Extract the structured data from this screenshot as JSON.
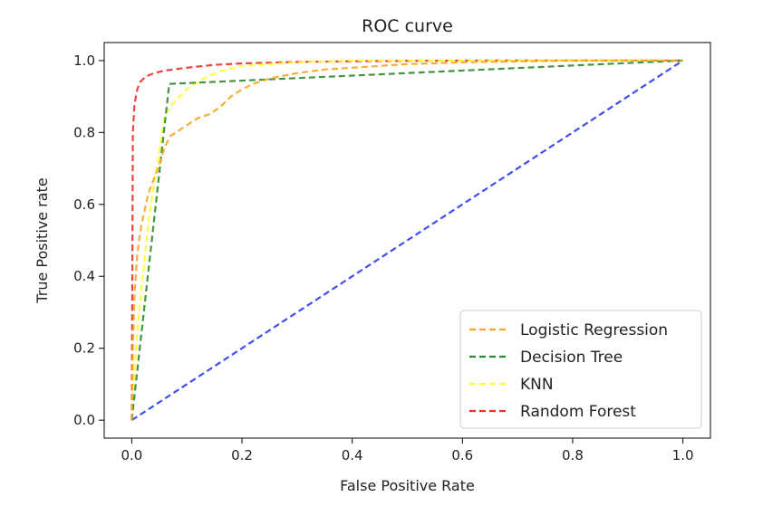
{
  "chart_data": {
    "type": "line",
    "title": "ROC curve",
    "xlabel": "False Positive Rate",
    "ylabel": "True Positive rate",
    "xlim": [
      -0.05,
      1.05
    ],
    "ylim": [
      -0.05,
      1.05
    ],
    "xticks": [
      0.0,
      0.2,
      0.4,
      0.6,
      0.8,
      1.0
    ],
    "yticks": [
      0.0,
      0.2,
      0.4,
      0.6,
      0.8,
      1.0
    ],
    "xtick_labels": [
      "0.0",
      "0.2",
      "0.4",
      "0.6",
      "0.8",
      "1.0"
    ],
    "ytick_labels": [
      "0.0",
      "0.2",
      "0.4",
      "0.6",
      "0.8",
      "1.0"
    ],
    "grid": false,
    "legend_position": "bottom-right",
    "series": [
      {
        "name": "Logistic Regression",
        "color": "#f5a623",
        "x": [
          0.0,
          0.002,
          0.005,
          0.01,
          0.015,
          0.02,
          0.03,
          0.04,
          0.05,
          0.06,
          0.07,
          0.08,
          0.1,
          0.12,
          0.14,
          0.16,
          0.18,
          0.2,
          0.22,
          0.25,
          0.3,
          0.35,
          0.4,
          0.5,
          0.6,
          0.8,
          1.0
        ],
        "y": [
          0.0,
          0.2,
          0.35,
          0.46,
          0.52,
          0.56,
          0.63,
          0.67,
          0.71,
          0.76,
          0.79,
          0.8,
          0.82,
          0.84,
          0.85,
          0.87,
          0.9,
          0.92,
          0.935,
          0.95,
          0.965,
          0.975,
          0.98,
          0.99,
          0.995,
          1.0,
          1.0
        ]
      },
      {
        "name": "Decision Tree",
        "color": "#2e8b2e",
        "x": [
          0.0,
          0.068,
          1.0
        ],
        "y": [
          0.0,
          0.935,
          1.0
        ]
      },
      {
        "name": "KNN",
        "color": "#ffff33",
        "x": [
          0.0,
          0.01,
          0.03,
          0.06,
          0.08,
          0.1,
          0.13,
          0.16,
          0.2,
          0.25,
          0.3,
          0.4,
          0.6,
          1.0
        ],
        "y": [
          0.0,
          0.25,
          0.55,
          0.85,
          0.89,
          0.92,
          0.95,
          0.97,
          0.985,
          0.99,
          0.995,
          1.0,
          1.0,
          1.0
        ]
      },
      {
        "name": "Random Forest",
        "color": "#e8322b",
        "x": [
          0.0,
          0.002,
          0.005,
          0.01,
          0.015,
          0.025,
          0.04,
          0.06,
          0.1,
          0.15,
          0.2,
          0.3,
          0.4,
          0.6,
          1.0
        ],
        "y": [
          0.0,
          0.8,
          0.88,
          0.92,
          0.94,
          0.955,
          0.965,
          0.972,
          0.98,
          0.988,
          0.992,
          0.996,
          0.998,
          1.0,
          1.0
        ]
      },
      {
        "name": "",
        "color": "#2b3bf0",
        "x": [
          0.0,
          1.0
        ],
        "y": [
          0.0,
          1.0
        ]
      }
    ]
  }
}
